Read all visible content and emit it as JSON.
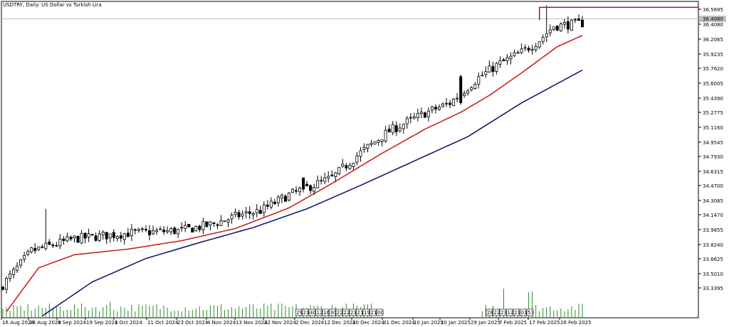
{
  "chart_data": {
    "type": "candlestick",
    "title": "USDTRY, Daily:  US Dollar vs Turkish Lira",
    "x_tick_labels": [
      "16 Aug 2024",
      "28 Aug 2024",
      "9 Sep 2024",
      "19 Sep 2024",
      "1 Oct 2024",
      "11 Oct 2024",
      "23 Oct 2024",
      "4 Nov 2024",
      "13 Nov 2024",
      "22 Nov 2024",
      "2 Dec 2024",
      "12 Dec 2024",
      "20 Dec 2024",
      "31 Dec 2024",
      "10 Jan 2025",
      "20 Jan 2025",
      "29 Jan 2025",
      "7 Feb 2025",
      "17 Feb 2025",
      "26 Feb 2025"
    ],
    "y_tick_labels": [
      "36.5695",
      "36.4080",
      "36.2065",
      "35.9235",
      "35.7620",
      "35.6005",
      "35.4390",
      "35.2775",
      "35.1160",
      "34.9545",
      "34.7930",
      "34.6315",
      "34.4700",
      "34.3085",
      "34.1470",
      "33.9855",
      "33.8240",
      "33.6625",
      "33.5010",
      "33.3395"
    ],
    "current_price_label": "36.4080",
    "ylim": [
      33.28,
      36.64
    ],
    "key_close_points": [
      {
        "i": 0,
        "c": 33.64
      },
      {
        "i": 8,
        "c": 34.0
      },
      {
        "i": 20,
        "c": 34.13
      },
      {
        "i": 35,
        "c": 34.19
      },
      {
        "i": 50,
        "c": 34.22
      },
      {
        "i": 58,
        "c": 34.28
      },
      {
        "i": 66,
        "c": 34.38
      },
      {
        "i": 72,
        "c": 34.43
      },
      {
        "i": 80,
        "c": 34.6
      },
      {
        "i": 92,
        "c": 34.78
      },
      {
        "i": 100,
        "c": 35.05
      },
      {
        "i": 108,
        "c": 35.28
      },
      {
        "i": 118,
        "c": 35.47
      },
      {
        "i": 125,
        "c": 35.58
      },
      {
        "i": 133,
        "c": 35.85
      },
      {
        "i": 138,
        "c": 35.98
      },
      {
        "i": 145,
        "c": 36.12
      },
      {
        "i": 150,
        "c": 36.25
      },
      {
        "i": 154,
        "c": 36.4
      },
      {
        "i": 162,
        "c": 36.43
      }
    ],
    "ma_fast_key": [
      {
        "i": 0,
        "c": 33.3
      },
      {
        "i": 10,
        "c": 33.82
      },
      {
        "i": 20,
        "c": 33.96
      },
      {
        "i": 35,
        "c": 34.02
      },
      {
        "i": 50,
        "c": 34.11
      },
      {
        "i": 65,
        "c": 34.24
      },
      {
        "i": 80,
        "c": 34.46
      },
      {
        "i": 92,
        "c": 34.72
      },
      {
        "i": 105,
        "c": 35.02
      },
      {
        "i": 118,
        "c": 35.3
      },
      {
        "i": 128,
        "c": 35.48
      },
      {
        "i": 136,
        "c": 35.66
      },
      {
        "i": 145,
        "c": 35.9
      },
      {
        "i": 155,
        "c": 36.18
      },
      {
        "i": 162,
        "c": 36.3
      }
    ],
    "ma_slow_key": [
      {
        "i": 10,
        "c": 33.28
      },
      {
        "i": 25,
        "c": 33.67
      },
      {
        "i": 40,
        "c": 33.92
      },
      {
        "i": 55,
        "c": 34.09
      },
      {
        "i": 70,
        "c": 34.25
      },
      {
        "i": 85,
        "c": 34.45
      },
      {
        "i": 100,
        "c": 34.7
      },
      {
        "i": 115,
        "c": 34.96
      },
      {
        "i": 130,
        "c": 35.22
      },
      {
        "i": 145,
        "c": 35.58
      },
      {
        "i": 162,
        "c": 35.93
      }
    ],
    "volume_labels": [
      "29",
      "21",
      "40",
      "12",
      "16",
      "30",
      "22",
      "22",
      "23",
      "21",
      "19",
      "21",
      "00",
      "28",
      "22",
      "23",
      "12",
      "21",
      "01",
      "53"
    ],
    "resistance_level": 36.6
  }
}
